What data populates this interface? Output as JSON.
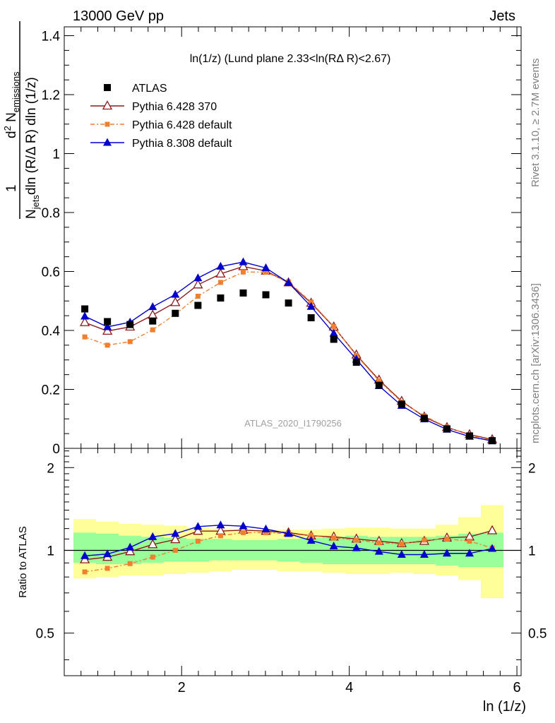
{
  "header": {
    "left": "13000 GeV pp",
    "right": "Jets"
  },
  "side": {
    "rivet": "Rivet 3.1.10, ≥ 2.7M events",
    "mcplots": "mcplots.cern.ch [arXiv:1306.3436]"
  },
  "watermark": "ATLAS_2020_I1790256",
  "chart_data": [
    {
      "type": "line",
      "title": "ln(1/z) (Lund plane 2.33<ln(RΔ R)<2.67)",
      "xlabel": "ln (1/z)",
      "ylabel": "1/N_jets d²N_emissions / dln(R/ΔR) dln(1/z)",
      "xlim": [
        0.6,
        6.05
      ],
      "ylim": [
        0,
        1.43
      ],
      "x_ticks": [
        "2",
        "4",
        "6"
      ],
      "y_ticks": [
        "0",
        "0.2",
        "0.4",
        "0.6",
        "0.8",
        "1",
        "1.2",
        "1.4"
      ],
      "legend_position": "top-left",
      "x": [
        0.845,
        1.115,
        1.385,
        1.655,
        1.925,
        2.195,
        2.465,
        2.735,
        3.005,
        3.275,
        3.545,
        3.815,
        4.085,
        4.355,
        4.625,
        4.895,
        5.165,
        5.435,
        5.705
      ],
      "series": [
        {
          "name": "ATLAS",
          "color": "#000000",
          "marker": "square",
          "values": [
            0.473,
            0.43,
            0.42,
            0.432,
            0.458,
            0.485,
            0.51,
            0.527,
            0.521,
            0.493,
            0.443,
            0.37,
            0.292,
            0.214,
            0.15,
            0.102,
            0.066,
            0.042,
            0.026
          ]
        },
        {
          "name": "Pythia 6.428 370",
          "color": "#8b1a1a",
          "marker": "open-triangle",
          "values": [
            0.427,
            0.398,
            0.412,
            0.452,
            0.495,
            0.555,
            0.592,
            0.617,
            0.602,
            0.562,
            0.493,
            0.412,
            0.317,
            0.232,
            0.16,
            0.107,
            0.071,
            0.047,
            0.03
          ]
        },
        {
          "name": "Pythia 6.428 default",
          "color": "#f07f2f",
          "marker": "small-square",
          "dashed": true,
          "values": [
            0.378,
            0.35,
            0.362,
            0.402,
            0.455,
            0.516,
            0.563,
            0.598,
            0.598,
            0.565,
            0.496,
            0.413,
            0.315,
            0.229,
            0.157,
            0.11,
            0.072,
            0.045,
            0.027
          ]
        },
        {
          "name": "Pythia 8.308 default",
          "color": "#0000cc",
          "marker": "triangle",
          "values": [
            0.448,
            0.412,
            0.428,
            0.48,
            0.522,
            0.578,
            0.617,
            0.632,
            0.612,
            0.562,
            0.481,
            0.39,
            0.302,
            0.212,
            0.145,
            0.099,
            0.064,
            0.04,
            0.025
          ]
        }
      ]
    },
    {
      "type": "line",
      "ylabel": "Ratio to ATLAS",
      "xlabel": "ln (1/z)",
      "xlim": [
        0.6,
        6.05
      ],
      "ylim": [
        0.35,
        2.35
      ],
      "y_scale": "log",
      "y_ticks": [
        "0.5",
        "1",
        "2"
      ],
      "x": [
        0.845,
        1.115,
        1.385,
        1.655,
        1.925,
        2.195,
        2.465,
        2.735,
        3.005,
        3.275,
        3.545,
        3.815,
        4.085,
        4.355,
        4.625,
        4.895,
        5.165,
        5.435,
        5.705
      ],
      "bands": {
        "total_low": [
          0.79,
          0.8,
          0.81,
          0.81,
          0.82,
          0.83,
          0.84,
          0.85,
          0.85,
          0.84,
          0.84,
          0.83,
          0.82,
          0.82,
          0.83,
          0.82,
          0.81,
          0.78,
          0.67
        ],
        "total_high": [
          1.3,
          1.27,
          1.25,
          1.24,
          1.23,
          1.21,
          1.2,
          1.19,
          1.19,
          1.19,
          1.19,
          1.2,
          1.21,
          1.21,
          1.2,
          1.2,
          1.24,
          1.32,
          1.46
        ],
        "stat_low": [
          0.9,
          0.89,
          0.89,
          0.9,
          0.91,
          0.91,
          0.92,
          0.92,
          0.92,
          0.91,
          0.9,
          0.89,
          0.89,
          0.89,
          0.89,
          0.89,
          0.88,
          0.87,
          0.87
        ],
        "stat_high": [
          1.16,
          1.15,
          1.13,
          1.12,
          1.11,
          1.1,
          1.1,
          1.09,
          1.09,
          1.1,
          1.11,
          1.12,
          1.13,
          1.12,
          1.12,
          1.12,
          1.13,
          1.15,
          1.16
        ]
      },
      "series": [
        {
          "name": "Pythia 6.428 370",
          "color": "#8b1a1a",
          "values": [
            0.925,
            0.945,
            0.99,
            1.05,
            1.095,
            1.175,
            1.175,
            1.185,
            1.175,
            1.16,
            1.13,
            1.12,
            1.1,
            1.08,
            1.06,
            1.08,
            1.11,
            1.12,
            1.18
          ]
        },
        {
          "name": "Pythia 6.428 default",
          "color": "#f07f2f",
          "values": [
            0.835,
            0.86,
            0.895,
            0.945,
            1.0,
            1.08,
            1.13,
            1.16,
            1.16,
            1.15,
            1.13,
            1.11,
            1.09,
            1.065,
            1.055,
            1.09,
            1.1,
            1.08,
            1.02
          ]
        },
        {
          "name": "Pythia 8.308 default",
          "color": "#0000cc",
          "values": [
            0.955,
            0.97,
            1.025,
            1.12,
            1.15,
            1.22,
            1.235,
            1.225,
            1.195,
            1.15,
            1.085,
            1.035,
            1.02,
            0.99,
            0.965,
            0.965,
            0.975,
            0.975,
            1.015
          ]
        }
      ]
    }
  ]
}
